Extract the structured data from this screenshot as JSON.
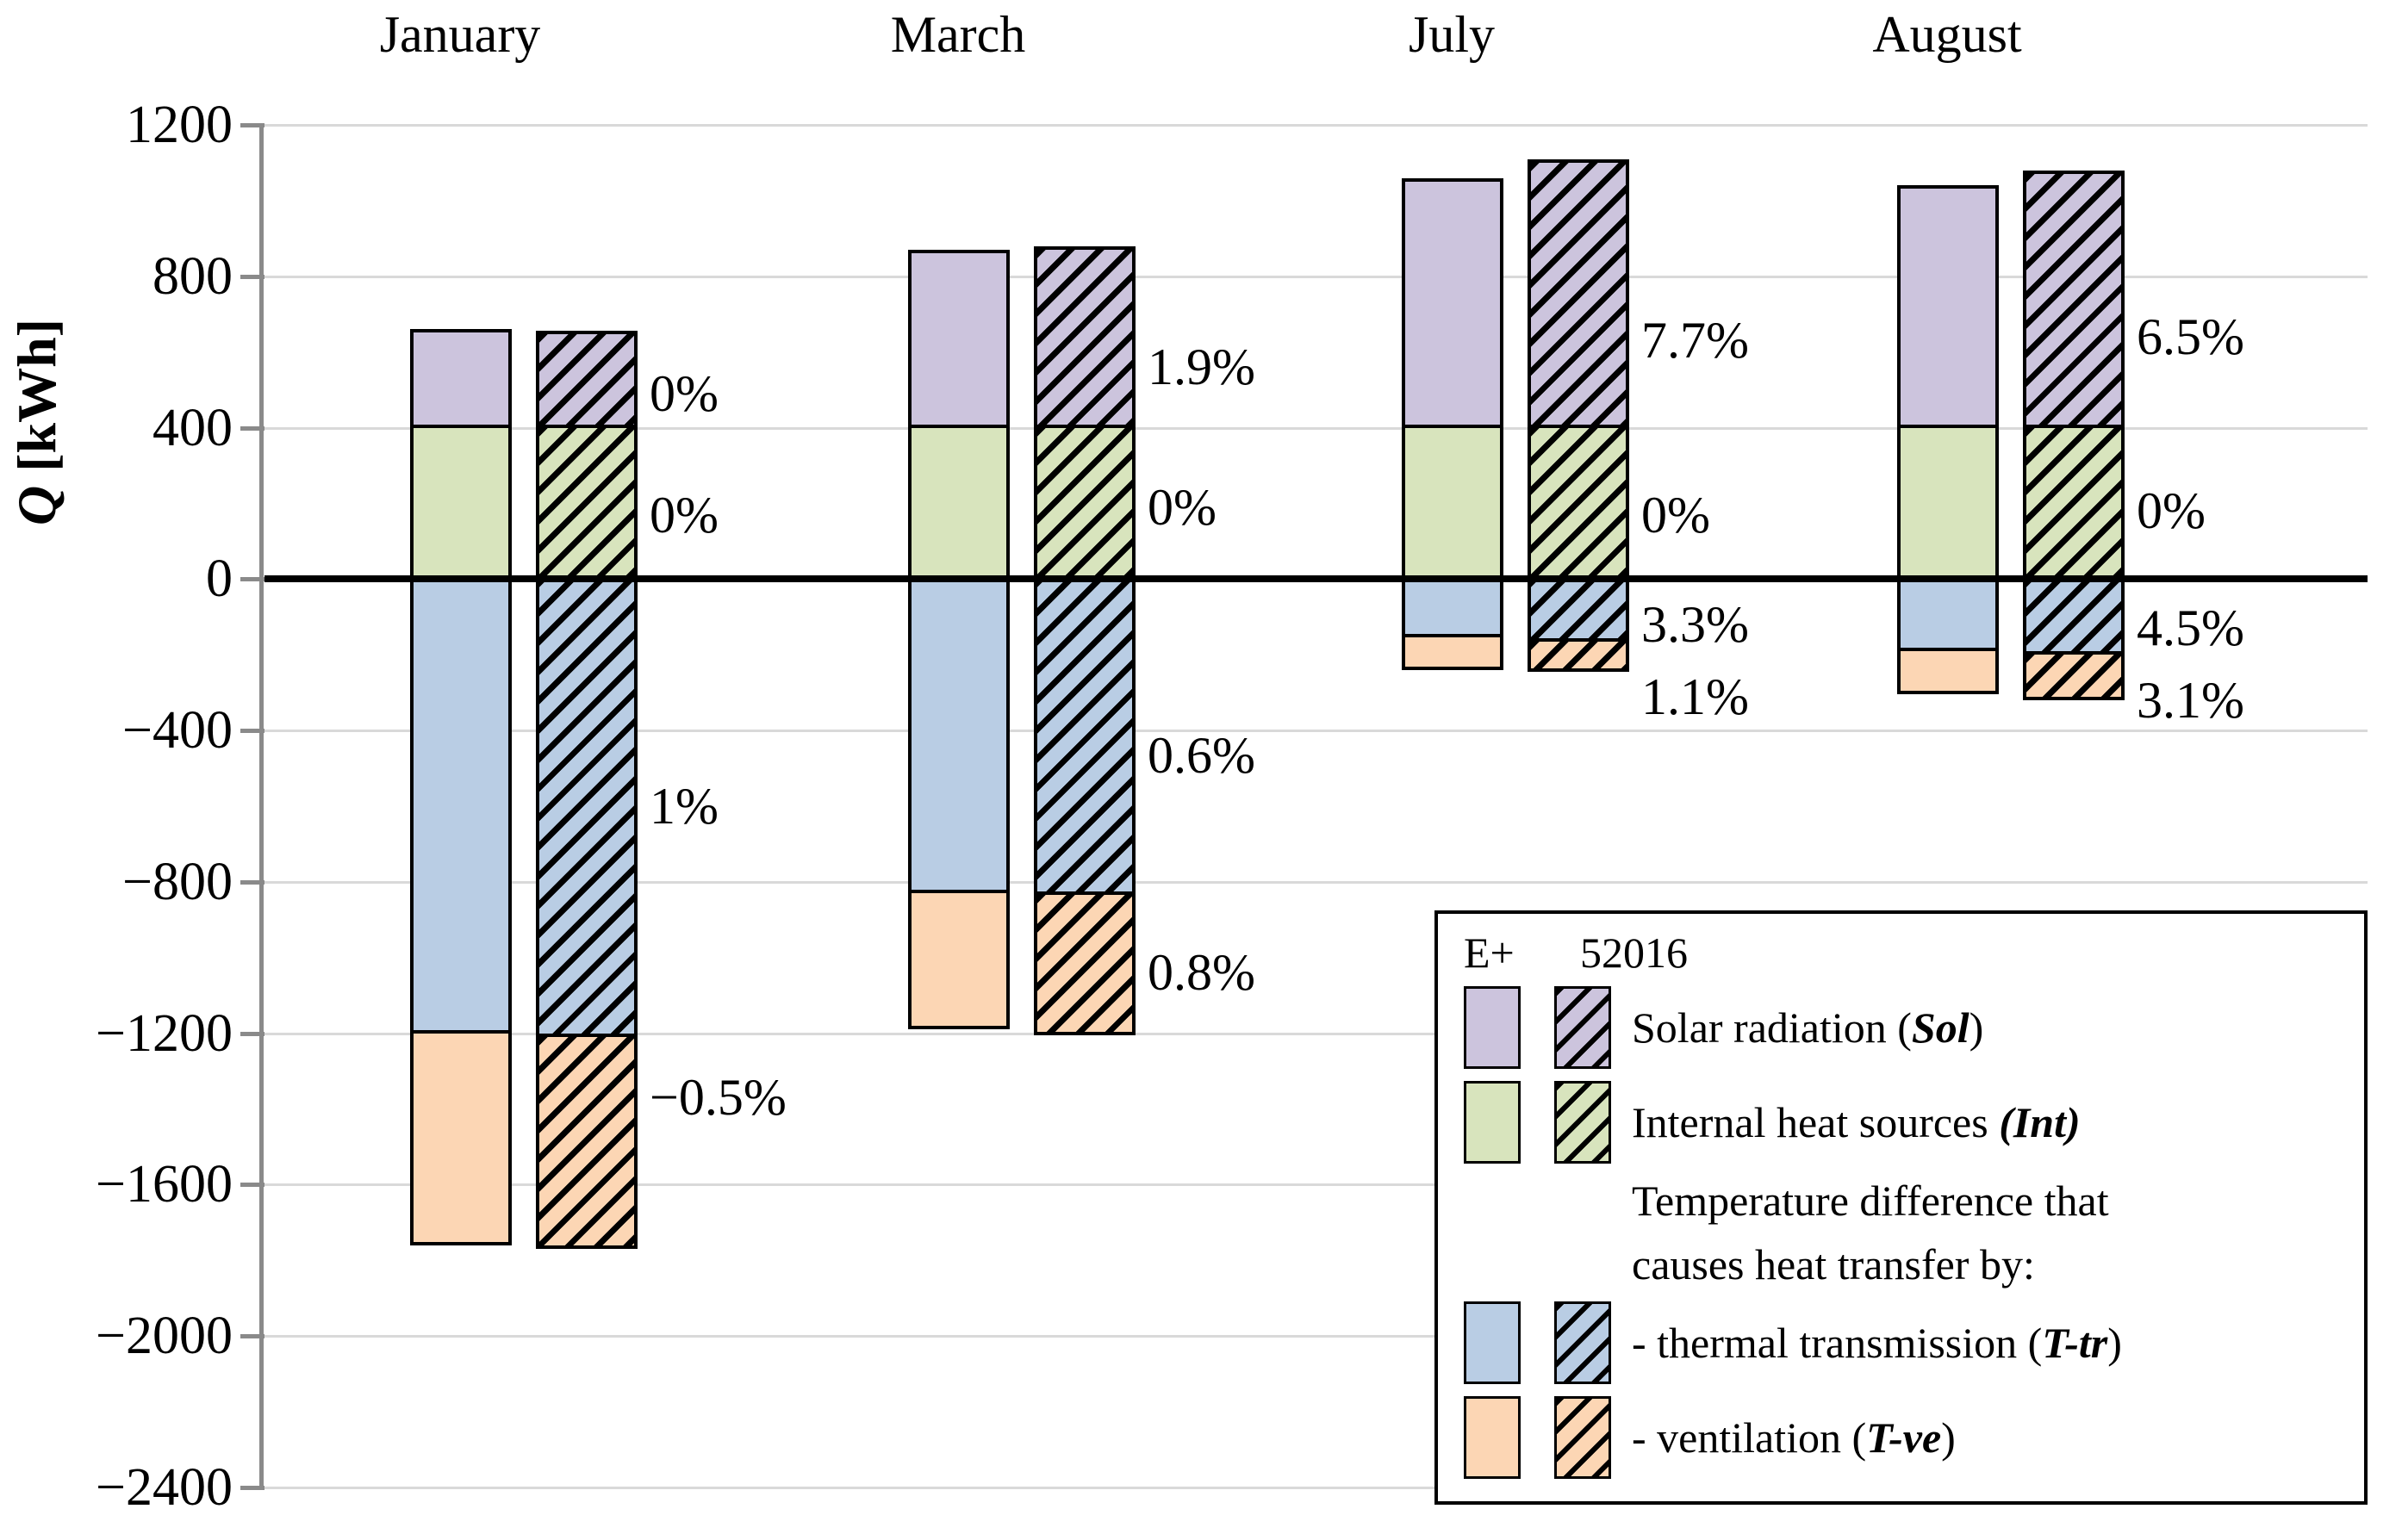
{
  "chart_data": {
    "type": "bar",
    "stacked": true,
    "title": "",
    "xlabel": "",
    "ylabel": {
      "emph": "Q",
      "rest": " [kWh]"
    },
    "unit": "kWh",
    "ylim": [
      -2400,
      1200
    ],
    "grid": true,
    "legend_position": "bottom-right",
    "yticks": [
      {
        "v": 1200,
        "label": "1200"
      },
      {
        "v": 800,
        "label": "800"
      },
      {
        "v": 400,
        "label": "400"
      },
      {
        "v": 0,
        "label": "0"
      },
      {
        "v": -400,
        "label": "−400"
      },
      {
        "v": -800,
        "label": "−800"
      },
      {
        "v": -1200,
        "label": "−1200"
      },
      {
        "v": -1600,
        "label": "−1600"
      },
      {
        "v": -2000,
        "label": "−2000"
      },
      {
        "v": -2400,
        "label": "−2400"
      }
    ],
    "series_variants": [
      "E+",
      "52016"
    ],
    "segment_keys": [
      "sol",
      "int",
      "ttr",
      "tve"
    ],
    "segment_names": {
      "sol": "Solar radiation (Sol)",
      "int": "Internal heat sources (Int)",
      "ttr": "thermal transmission (T-tr)",
      "tve": "ventilation (T-ve)"
    },
    "colors": {
      "sol": "#ccc4dd",
      "int": "#d8e4bd",
      "ttr": "#b9cde4",
      "tve": "#fcd6b4",
      "grid": "#d9d9d9",
      "axis": "#8a8a8a",
      "zero": "#000000",
      "bar_border": "#000000",
      "hatch": "#000000"
    },
    "months": [
      {
        "name": "January",
        "bars": [
          {
            "variant": "E+",
            "style": "solid",
            "segments": {
              "sol": [
                400,
                660
              ],
              "int": [
                0,
                400
              ],
              "ttr": [
                -1200,
                0
              ],
              "tve": [
                -1760,
                -1200
              ]
            }
          },
          {
            "variant": "52016",
            "style": "hatched",
            "segments": {
              "sol": [
                400,
                655
              ],
              "int": [
                0,
                400
              ],
              "ttr": [
                -1210,
                0
              ],
              "tve": [
                -1770,
                -1210
              ]
            }
          }
        ],
        "pct_labels": [
          {
            "text": "0%",
            "anchor": 490
          },
          {
            "text": "0%",
            "anchor": 170
          },
          {
            "text": "1%",
            "anchor": -600
          },
          {
            "text": "−0.5%",
            "anchor": -1370
          }
        ]
      },
      {
        "name": "March",
        "bars": [
          {
            "variant": "E+",
            "style": "solid",
            "segments": {
              "sol": [
                400,
                870
              ],
              "int": [
                0,
                400
              ],
              "ttr": [
                -830,
                0
              ],
              "tve": [
                -1190,
                -830
              ]
            }
          },
          {
            "variant": "52016",
            "style": "hatched",
            "segments": {
              "sol": [
                400,
                880
              ],
              "int": [
                0,
                400
              ],
              "ttr": [
                -835,
                0
              ],
              "tve": [
                -1205,
                -835
              ]
            }
          }
        ],
        "pct_labels": [
          {
            "text": "1.9%",
            "anchor": 560
          },
          {
            "text": "0%",
            "anchor": 190
          },
          {
            "text": "0.6%",
            "anchor": -465
          },
          {
            "text": "0.8%",
            "anchor": -1040
          }
        ]
      },
      {
        "name": "July",
        "bars": [
          {
            "variant": "E+",
            "style": "solid",
            "segments": {
              "sol": [
                400,
                1060
              ],
              "int": [
                0,
                400
              ],
              "ttr": [
                -155,
                0
              ],
              "tve": [
                -240,
                -155
              ]
            }
          },
          {
            "variant": "52016",
            "style": "hatched",
            "segments": {
              "sol": [
                400,
                1110
              ],
              "int": [
                0,
                400
              ],
              "ttr": [
                -165,
                0
              ],
              "tve": [
                -246,
                -165
              ]
            }
          }
        ],
        "pct_labels": [
          {
            "text": "7.7%",
            "anchor": 630
          },
          {
            "text": "0%",
            "anchor": 170
          },
          {
            "text": "3.3%",
            "anchor": -120
          },
          {
            "text": "1.1%",
            "anchor": -310
          }
        ]
      },
      {
        "name": "August",
        "bars": [
          {
            "variant": "E+",
            "style": "solid",
            "segments": {
              "sol": [
                400,
                1040
              ],
              "int": [
                0,
                400
              ],
              "ttr": [
                -190,
                0
              ],
              "tve": [
                -305,
                -190
              ]
            }
          },
          {
            "variant": "52016",
            "style": "hatched",
            "segments": {
              "sol": [
                400,
                1080
              ],
              "int": [
                0,
                400
              ],
              "ttr": [
                -200,
                0
              ],
              "tve": [
                -320,
                -200
              ]
            }
          }
        ],
        "pct_labels": [
          {
            "text": "6.5%",
            "anchor": 640
          },
          {
            "text": "0%",
            "anchor": 180
          },
          {
            "text": "4.5%",
            "anchor": -130
          },
          {
            "text": "3.1%",
            "anchor": -320
          }
        ]
      }
    ]
  },
  "legend": {
    "header_e": "E+",
    "header_std": "52016",
    "rows": [
      {
        "prefix": "Solar radiation (",
        "emph": "Sol",
        "suffix": ")"
      },
      {
        "prefix": "Internal heat sources ",
        "emph": "(Int)",
        "suffix": ""
      },
      {
        "prefix": "- thermal transmission (",
        "emph": "T-tr",
        "suffix": ")"
      },
      {
        "prefix": "- ventilation (",
        "emph": "T-ve",
        "suffix": ")"
      }
    ],
    "note_line1": "Temperature difference that",
    "note_line2": "causes heat transfer by:"
  }
}
